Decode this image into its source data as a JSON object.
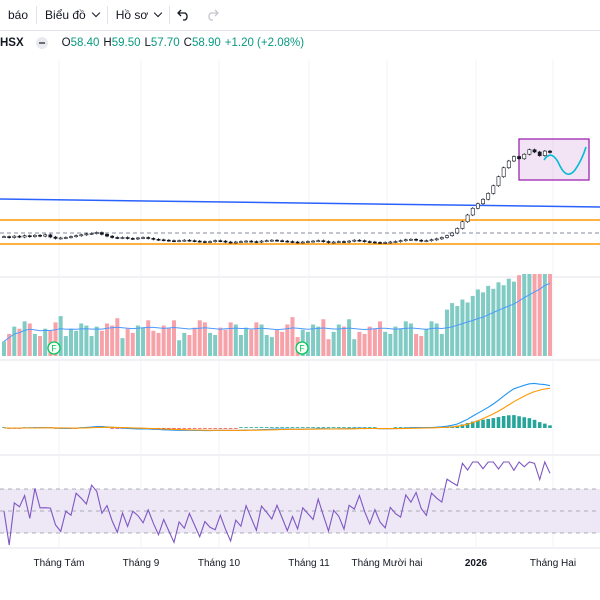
{
  "toolbar": {
    "items": [
      {
        "label": "báo"
      },
      {
        "label": "Biểu đồ"
      },
      {
        "label": "Hồ sơ"
      }
    ],
    "undo_icon": "undo-icon",
    "redo_icon": "redo-icon"
  },
  "legend": {
    "symbol": "HSX",
    "open_key": "O",
    "open_val": "58.40",
    "high_key": "H",
    "high_val": "59.50",
    "low_key": "L",
    "low_val": "57.70",
    "close_key": "C",
    "close_val": "58.90",
    "change": "+1.20 (+2.08%)",
    "change_color": "#089981"
  },
  "colors": {
    "up": "#089981",
    "down": "#f23645",
    "volume_up": "#80cbc4",
    "volume_down": "#f7a1a8",
    "trend_line": "#2962ff",
    "level_line": "#ff9800",
    "ma_line": "#4c9aff",
    "macd_line": "#2196f3",
    "signal_line": "#ff9800",
    "rsi_line": "#7e57c2",
    "rsi_band": "#ede7f6",
    "box": "#9c27b0"
  },
  "volume_markers": [
    {
      "label": "F"
    },
    {
      "label": "F"
    }
  ],
  "x_axis": {
    "labels": [
      "Tháng Tám",
      "Tháng 9",
      "Tháng 10",
      "Tháng 11",
      "Tháng Mười hai",
      "2026",
      "Tháng Hai"
    ]
  },
  "chart_data": {
    "type": "candlestick",
    "series": [
      {
        "name": "price",
        "note": "sideways ~39-41 then breakout to ~59 in Jan 2026",
        "close": [
          40.2,
          40.0,
          40.3,
          40.1,
          40.4,
          40.2,
          40.5,
          40.3,
          40.6,
          40.1,
          39.8,
          39.9,
          40.0,
          40.2,
          40.4,
          40.6,
          40.8,
          40.9,
          41.1,
          40.7,
          40.3,
          40.0,
          39.9,
          40.0,
          39.8,
          39.7,
          39.9,
          40.0,
          39.8,
          39.6,
          39.5,
          39.4,
          39.3,
          39.2,
          39.3,
          39.4,
          39.3,
          39.2,
          39.1,
          39.0,
          39.1,
          39.3,
          39.2,
          39.0,
          38.9,
          39.0,
          39.1,
          39.2,
          39.1,
          39.0,
          39.2,
          39.3,
          39.4,
          39.3,
          39.2,
          39.1,
          39.0,
          38.9,
          39.0,
          39.1,
          39.2,
          39.3,
          39.1,
          38.9,
          39.0,
          39.1,
          39.0,
          39.2,
          39.4,
          39.3,
          39.1,
          39.0,
          38.9,
          38.8,
          38.9,
          39.0,
          39.1,
          39.3,
          39.5,
          39.6,
          39.4,
          39.2,
          39.3,
          39.5,
          39.7,
          40.0,
          40.4,
          41.0,
          42.0,
          43.5,
          45.0,
          46.5,
          47.5,
          48.5,
          49.8,
          51.5,
          53.5,
          55.5,
          57.0,
          58.0,
          57.5,
          58.5,
          59.5,
          59.0,
          58.2,
          59.2,
          58.9
        ]
      }
    ],
    "levels": [
      {
        "name": "resistance_upper",
        "y": 45.5
      },
      {
        "name": "support_mid",
        "y": 41.5
      },
      {
        "name": "support_lower",
        "y": 38.9
      }
    ],
    "volume_ma_shown": true,
    "indicators": [
      "Volume",
      "MACD",
      "RSI"
    ]
  }
}
